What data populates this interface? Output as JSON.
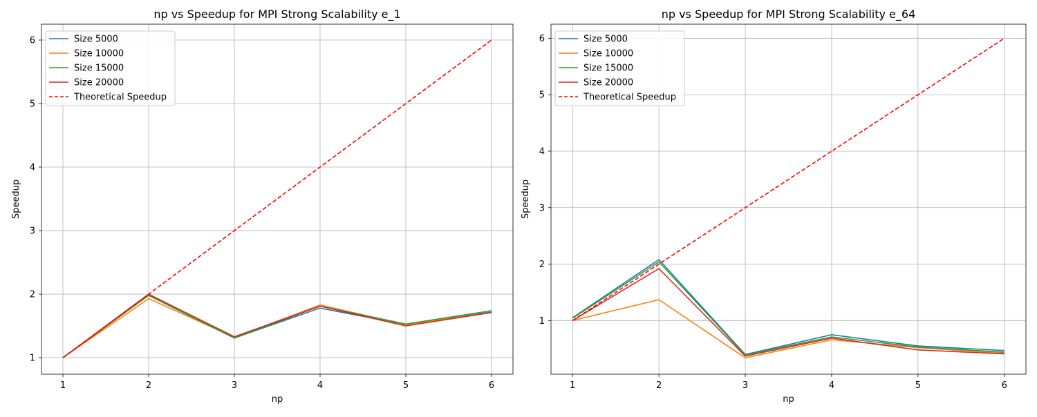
{
  "chart_data": [
    {
      "type": "line",
      "title": "np vs Speedup for MPI Strong Scalability e_1",
      "xlabel": "np",
      "ylabel": "Speedup",
      "x": [
        1,
        2,
        3,
        4,
        5,
        6
      ],
      "xlim": [
        0.75,
        6.25
      ],
      "ylim": [
        0.74,
        6.25
      ],
      "xticks": [
        1,
        2,
        3,
        4,
        5,
        6
      ],
      "yticks": [
        1,
        2,
        3,
        4,
        5,
        6
      ],
      "grid": true,
      "legend_position": "top-left",
      "series": [
        {
          "name": "Size 5000",
          "color": "#1f77b4",
          "dash": "solid",
          "values": [
            1.0,
            1.98,
            1.31,
            1.78,
            1.52,
            1.72
          ]
        },
        {
          "name": "Size 10000",
          "color": "#ff7f0e",
          "dash": "solid",
          "values": [
            1.0,
            1.93,
            1.32,
            1.83,
            1.52,
            1.71
          ]
        },
        {
          "name": "Size 15000",
          "color": "#2ca02c",
          "dash": "solid",
          "values": [
            1.0,
            1.98,
            1.31,
            1.81,
            1.53,
            1.74
          ]
        },
        {
          "name": "Size 20000",
          "color": "#d62728",
          "dash": "solid",
          "values": [
            1.0,
            2.0,
            1.33,
            1.81,
            1.5,
            1.71
          ]
        },
        {
          "name": "Theoretical Speedup",
          "color": "#ff0000",
          "dash": "dashed",
          "values": [
            1,
            2,
            3,
            4,
            5,
            6
          ]
        }
      ]
    },
    {
      "type": "line",
      "title": "np vs Speedup for MPI Strong Scalability e_64",
      "xlabel": "np",
      "ylabel": "Speedup",
      "x": [
        1,
        2,
        3,
        4,
        5,
        6
      ],
      "xlim": [
        0.75,
        6.25
      ],
      "ylim": [
        0.05,
        6.25
      ],
      "xticks": [
        1,
        2,
        3,
        4,
        5,
        6
      ],
      "yticks": [
        1,
        2,
        3,
        4,
        5,
        6
      ],
      "grid": true,
      "legend_position": "top-left",
      "series": [
        {
          "name": "Size 5000",
          "color": "#1f77b4",
          "dash": "solid",
          "values": [
            1.05,
            2.08,
            0.4,
            0.75,
            0.55,
            0.47
          ]
        },
        {
          "name": "Size 10000",
          "color": "#ff7f0e",
          "dash": "solid",
          "values": [
            1.0,
            1.37,
            0.34,
            0.66,
            0.52,
            0.42
          ]
        },
        {
          "name": "Size 15000",
          "color": "#2ca02c",
          "dash": "solid",
          "values": [
            1.04,
            2.04,
            0.39,
            0.71,
            0.53,
            0.44
          ]
        },
        {
          "name": "Size 20000",
          "color": "#d62728",
          "dash": "solid",
          "values": [
            1.0,
            1.92,
            0.37,
            0.69,
            0.48,
            0.41
          ]
        },
        {
          "name": "Theoretical Speedup",
          "color": "#ff0000",
          "dash": "dashed",
          "values": [
            1,
            2,
            3,
            4,
            5,
            6
          ]
        }
      ]
    }
  ]
}
